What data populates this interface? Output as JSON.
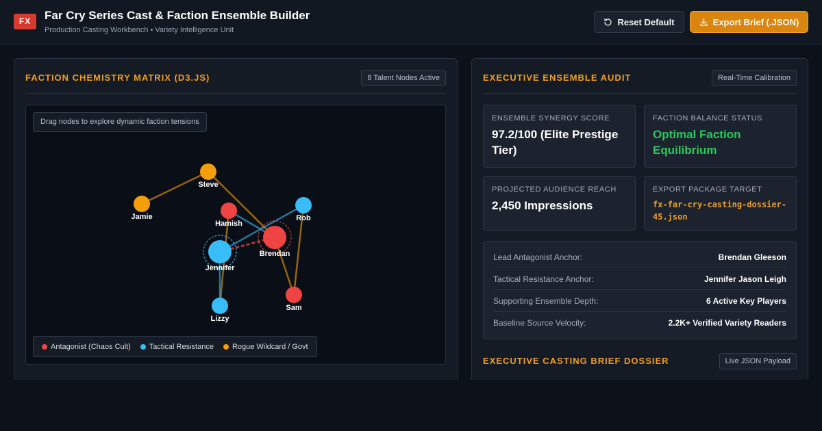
{
  "header": {
    "logo": "FX",
    "title": "Far Cry Series Cast & Faction Ensemble Builder",
    "subtitle": "Production Casting Workbench • Variety Intelligence Unit",
    "reset_label": "Reset Default",
    "export_label": "Export Brief (.JSON)",
    "reset_icon": "refresh-icon",
    "export_icon": "download-icon"
  },
  "left_panel": {
    "title": "FACTION CHEMISTRY MATRIX (D3.JS)",
    "badge": "8 Talent Nodes Active",
    "hint": "Drag nodes to explore dynamic faction tensions"
  },
  "factions": [
    {
      "id": "antagonist",
      "label": "Antagonist (Chaos Cult)",
      "color": "#ef4444"
    },
    {
      "id": "tactical",
      "label": "Tactical Resistance",
      "color": "#38bdf8"
    },
    {
      "id": "rogue",
      "label": "Rogue Wildcard / Govt",
      "color": "#f59e0b"
    }
  ],
  "nodes": [
    {
      "id": "Steve",
      "faction": "rogue",
      "lead": false
    },
    {
      "id": "Jamie",
      "faction": "rogue",
      "lead": false
    },
    {
      "id": "Hamish",
      "faction": "antagonist",
      "lead": false
    },
    {
      "id": "Rob",
      "faction": "tactical",
      "lead": false
    },
    {
      "id": "Brendan",
      "faction": "antagonist",
      "lead": true
    },
    {
      "id": "Jennifer",
      "faction": "tactical",
      "lead": true
    },
    {
      "id": "Lizzy",
      "faction": "tactical",
      "lead": false
    },
    {
      "id": "Sam",
      "faction": "antagonist",
      "lead": false
    }
  ],
  "links": [
    {
      "source": "Steve",
      "target": "Jamie",
      "color": "#f59e0b"
    },
    {
      "source": "Steve",
      "target": "Brendan",
      "color": "#f59e0b"
    },
    {
      "source": "Hamish",
      "target": "Brendan",
      "color": "#38bdf8"
    },
    {
      "source": "Rob",
      "target": "Jennifer",
      "color": "#38bdf8"
    },
    {
      "source": "Rob",
      "target": "Sam",
      "color": "#f59e0b"
    },
    {
      "source": "Brendan",
      "target": "Sam",
      "color": "#f59e0b"
    },
    {
      "source": "Hamish",
      "target": "Lizzy",
      "color": "#f59e0b"
    },
    {
      "source": "Jennifer",
      "target": "Lizzy",
      "color": "#38bdf8"
    },
    {
      "source": "Jennifer",
      "target": "Brendan",
      "color": "#ef4444",
      "dashed": true
    }
  ],
  "right_panel": {
    "title": "EXECUTIVE ENSEMBLE AUDIT",
    "badge": "Real-Time Calibration",
    "cards": [
      {
        "label": "ENSEMBLE SYNERGY SCORE",
        "value": "97.2/100 (Elite Prestige Tier)"
      },
      {
        "label": "FACTION BALANCE STATUS",
        "value": "Optimal Faction Equilibrium"
      },
      {
        "label": "PROJECTED AUDIENCE REACH",
        "value": "2,450 Impressions"
      },
      {
        "label": "EXPORT PACKAGE TARGET",
        "value": "fx-far-cry-casting-dossier-45.json"
      }
    ],
    "anchors": [
      {
        "label": "Lead Antagonist Anchor:",
        "value": "Brendan Gleeson"
      },
      {
        "label": "Tactical Resistance Anchor:",
        "value": "Jennifer Jason Leigh"
      },
      {
        "label": "Supporting Ensemble Depth:",
        "value": "6 Active Key Players"
      },
      {
        "label": "Baseline Source Velocity:",
        "value": "2.2K+ Verified Variety Readers"
      }
    ],
    "dossier_title": "EXECUTIVE CASTING BRIEF DOSSIER",
    "dossier_badge": "Live JSON Payload"
  }
}
